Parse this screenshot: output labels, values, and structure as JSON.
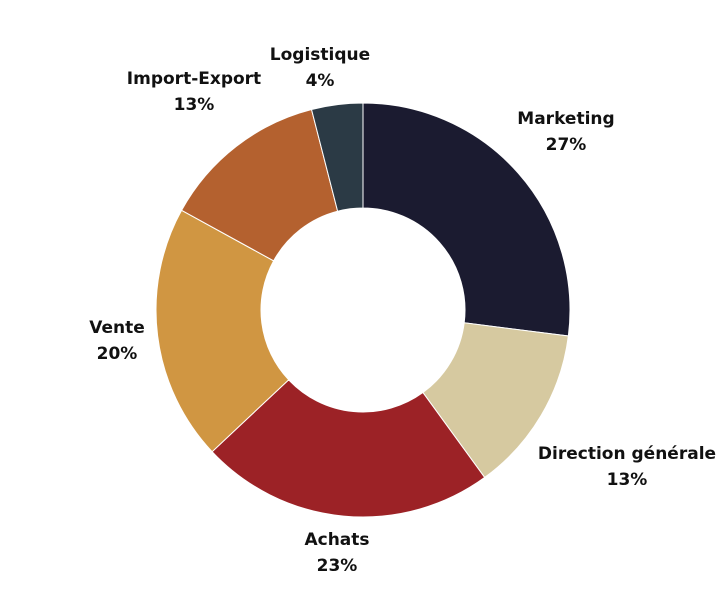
{
  "chart_data": {
    "type": "pie",
    "donut": true,
    "title": "",
    "legend": "none",
    "slices": [
      {
        "label": "Marketing",
        "value": 27,
        "value_label": "27%",
        "color": "#1b1b30"
      },
      {
        "label": "Direction générale",
        "value": 13,
        "value_label": "13%",
        "color": "#d6c9a0"
      },
      {
        "label": "Achats",
        "value": 23,
        "value_label": "23%",
        "color": "#9c2226"
      },
      {
        "label": "Vente",
        "value": 20,
        "value_label": "20%",
        "color": "#d09642"
      },
      {
        "label": "Import-Export",
        "value": 13,
        "value_label": "13%",
        "color": "#b4612f"
      },
      {
        "label": "Logistique",
        "value": 4,
        "value_label": "4%",
        "color": "#2b3a45"
      }
    ]
  }
}
